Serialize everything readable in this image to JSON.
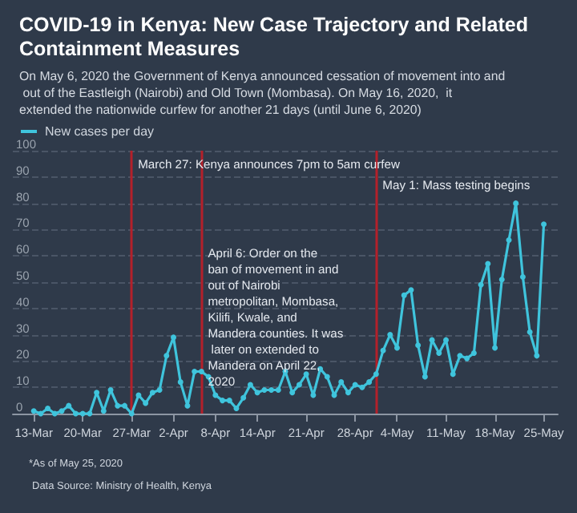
{
  "chart_data": {
    "type": "line",
    "title": "COVID-19 in Kenya: New Case Trajectory and Related Containment Measures",
    "subtitle": "On May 6, 2020 the Government of Kenya announced cessation of movement into and out of the Eastleigh (Nairobi) and Old Town (Mombasa). On May 16, 2020,  it extended the nationwide curfew for another 21 days (until June 6, 2020)",
    "x": [
      "2020-03-13",
      "2020-03-14",
      "2020-03-15",
      "2020-03-16",
      "2020-03-17",
      "2020-03-18",
      "2020-03-19",
      "2020-03-20",
      "2020-03-21",
      "2020-03-22",
      "2020-03-23",
      "2020-03-24",
      "2020-03-25",
      "2020-03-26",
      "2020-03-27",
      "2020-03-28",
      "2020-03-29",
      "2020-03-30",
      "2020-03-31",
      "2020-04-01",
      "2020-04-02",
      "2020-04-03",
      "2020-04-04",
      "2020-04-05",
      "2020-04-06",
      "2020-04-07",
      "2020-04-08",
      "2020-04-09",
      "2020-04-10",
      "2020-04-11",
      "2020-04-12",
      "2020-04-13",
      "2020-04-14",
      "2020-04-15",
      "2020-04-16",
      "2020-04-17",
      "2020-04-18",
      "2020-04-19",
      "2020-04-20",
      "2020-04-21",
      "2020-04-22",
      "2020-04-23",
      "2020-04-24",
      "2020-04-25",
      "2020-04-26",
      "2020-04-27",
      "2020-04-28",
      "2020-04-29",
      "2020-04-30",
      "2020-05-01",
      "2020-05-02",
      "2020-05-03",
      "2020-05-04",
      "2020-05-05",
      "2020-05-06",
      "2020-05-07",
      "2020-05-08",
      "2020-05-09",
      "2020-05-10",
      "2020-05-11",
      "2020-05-12",
      "2020-05-13",
      "2020-05-14",
      "2020-05-15",
      "2020-05-16",
      "2020-05-17",
      "2020-05-18",
      "2020-05-19",
      "2020-05-20",
      "2020-05-21",
      "2020-05-22",
      "2020-05-23",
      "2020-05-24",
      "2020-05-25"
    ],
    "series": [
      {
        "name": "New cases per day",
        "color": "#3fc4dc",
        "values": [
          1,
          0,
          2,
          0,
          1,
          3,
          0,
          0,
          0,
          8,
          1,
          9,
          3,
          3,
          0,
          7,
          4,
          8,
          9,
          22,
          29,
          12,
          3,
          16,
          16,
          14,
          7,
          5,
          5,
          2,
          6,
          11,
          8,
          9,
          9,
          9,
          16,
          8,
          11,
          15,
          7,
          17,
          14,
          7,
          12,
          8,
          11,
          10,
          12,
          15,
          24,
          30,
          25,
          45,
          47,
          26,
          14,
          28,
          23,
          28,
          15,
          22,
          21,
          23,
          49,
          57,
          25,
          51,
          66,
          80,
          52,
          31,
          22,
          72
        ]
      }
    ],
    "xlim": [
      "2020-03-10",
      "2020-05-27"
    ],
    "xticks": [
      {
        "value": "2020-03-13",
        "label": "13-Mar"
      },
      {
        "value": "2020-03-20",
        "label": "20-Mar"
      },
      {
        "value": "2020-03-27",
        "label": "27-Mar"
      },
      {
        "value": "2020-04-02",
        "label": "2-Apr"
      },
      {
        "value": "2020-04-08",
        "label": "8-Apr"
      },
      {
        "value": "2020-04-14",
        "label": "14-Apr"
      },
      {
        "value": "2020-04-21",
        "label": "21-Apr"
      },
      {
        "value": "2020-04-28",
        "label": "28-Apr"
      },
      {
        "value": "2020-05-04",
        "label": "4-May"
      },
      {
        "value": "2020-05-11",
        "label": "11-May"
      },
      {
        "value": "2020-05-18",
        "label": "18-May"
      },
      {
        "value": "2020-05-25",
        "label": "25-May"
      }
    ],
    "ylim": [
      0,
      100
    ],
    "yticks": [
      0,
      10,
      20,
      30,
      40,
      50,
      60,
      70,
      80,
      90,
      100
    ],
    "grid": "y",
    "legend": "top left",
    "marker": "circle",
    "line_style": "solid",
    "ref_lines": [
      {
        "axis": "x",
        "value": "2020-03-27",
        "label": "March 27: Kenya announces 7pm to 5am curfew",
        "color": "#b3202a"
      },
      {
        "axis": "x",
        "value": "2020-04-06",
        "label": "April 6: Order on the ban of movement in and out of Nairobi metropolitan, Mombasa, Kilifi, Kwale, and Mandera counties. It was later on extended to Mandera on April 22, 2020",
        "color": "#b3202a"
      },
      {
        "axis": "x",
        "value": "2020-05-01",
        "label": "May 1: Mass testing begins",
        "color": "#b3202a"
      }
    ],
    "annotations": [
      "*As of May 25, 2020",
      "Data Source: Ministry of Health, Kenya"
    ]
  }
}
